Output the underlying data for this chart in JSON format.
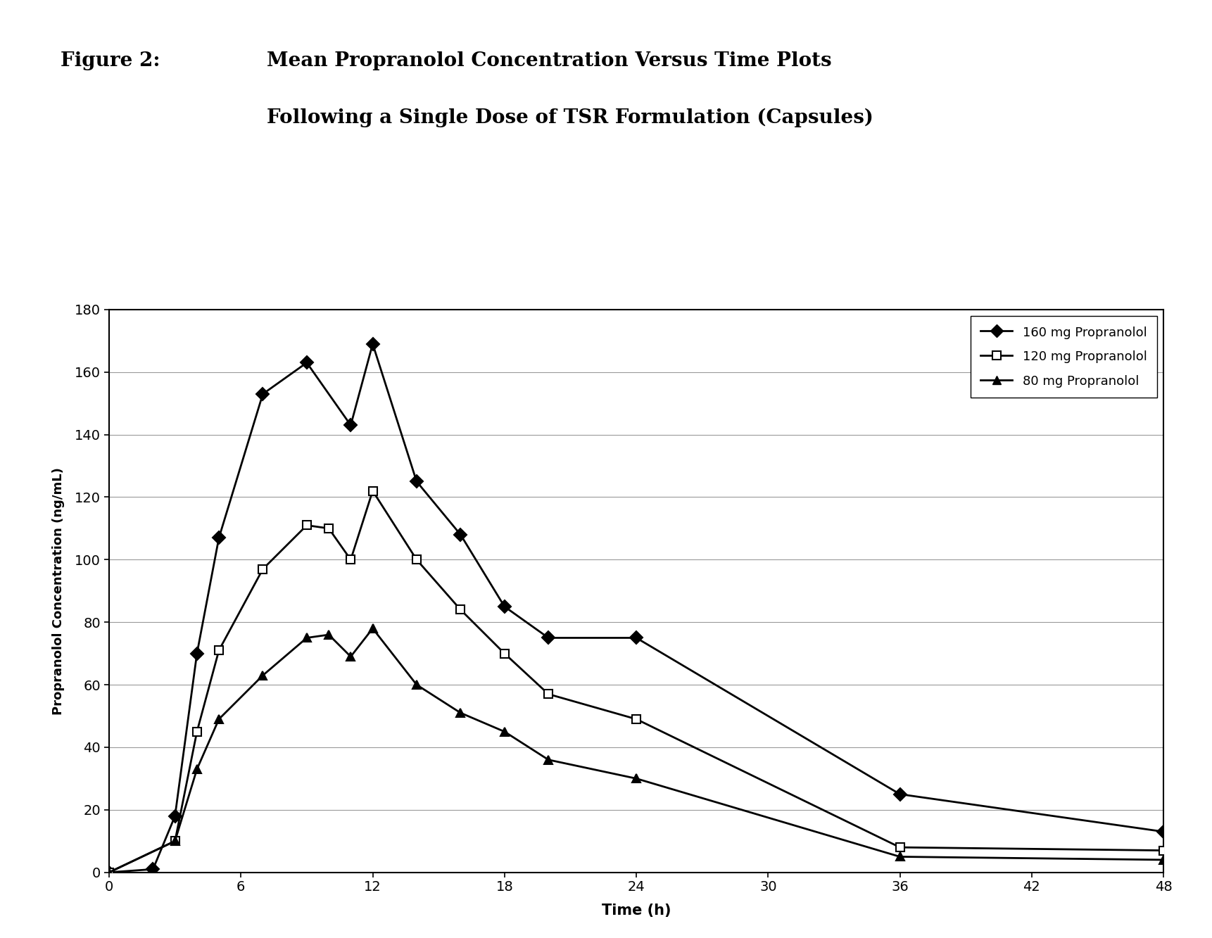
{
  "title_label": "Figure 2:",
  "title_main_line1": "Mean Propranolol Concentration Versus Time Plots",
  "title_main_line2": "Following a Single Dose of TSR Formulation (Capsules)",
  "xlabel": "Time (h)",
  "ylabel": "Propranolol Concentration (ng/mL)",
  "xlim": [
    0,
    48
  ],
  "ylim": [
    0,
    180
  ],
  "xticks": [
    0,
    6,
    12,
    18,
    24,
    30,
    36,
    42,
    48
  ],
  "yticks": [
    0,
    20,
    40,
    60,
    80,
    100,
    120,
    140,
    160,
    180
  ],
  "series_160": {
    "label": "160 mg Propranolol",
    "x": [
      0,
      2,
      3,
      4,
      5,
      7,
      9,
      11,
      12,
      14,
      16,
      18,
      20,
      24,
      36,
      48
    ],
    "y": [
      0,
      1,
      18,
      70,
      107,
      153,
      163,
      143,
      169,
      125,
      108,
      85,
      75,
      75,
      25,
      13
    ],
    "marker": "D",
    "markersize": 9,
    "markerfacecolor": "#000000",
    "markeredgecolor": "#000000"
  },
  "series_120": {
    "label": "120 mg Propranolol",
    "x": [
      0,
      3,
      4,
      5,
      7,
      9,
      10,
      11,
      12,
      14,
      16,
      18,
      20,
      24,
      36,
      48
    ],
    "y": [
      0,
      10,
      45,
      71,
      97,
      111,
      110,
      100,
      122,
      100,
      84,
      70,
      57,
      49,
      8,
      7
    ],
    "marker": "s",
    "markersize": 9,
    "markerfacecolor": "#ffffff",
    "markeredgecolor": "#000000"
  },
  "series_80": {
    "label": "80 mg Propranolol",
    "x": [
      0,
      3,
      4,
      5,
      7,
      9,
      10,
      11,
      12,
      14,
      16,
      18,
      20,
      24,
      36,
      48
    ],
    "y": [
      0,
      10,
      33,
      49,
      63,
      75,
      76,
      69,
      78,
      60,
      51,
      45,
      36,
      30,
      5,
      4
    ],
    "marker": "^",
    "markersize": 9,
    "markerfacecolor": "#000000",
    "markeredgecolor": "#000000"
  },
  "background_color": "#ffffff",
  "grid_color": "#999999",
  "line_width": 2.0,
  "line_color": "#000000"
}
